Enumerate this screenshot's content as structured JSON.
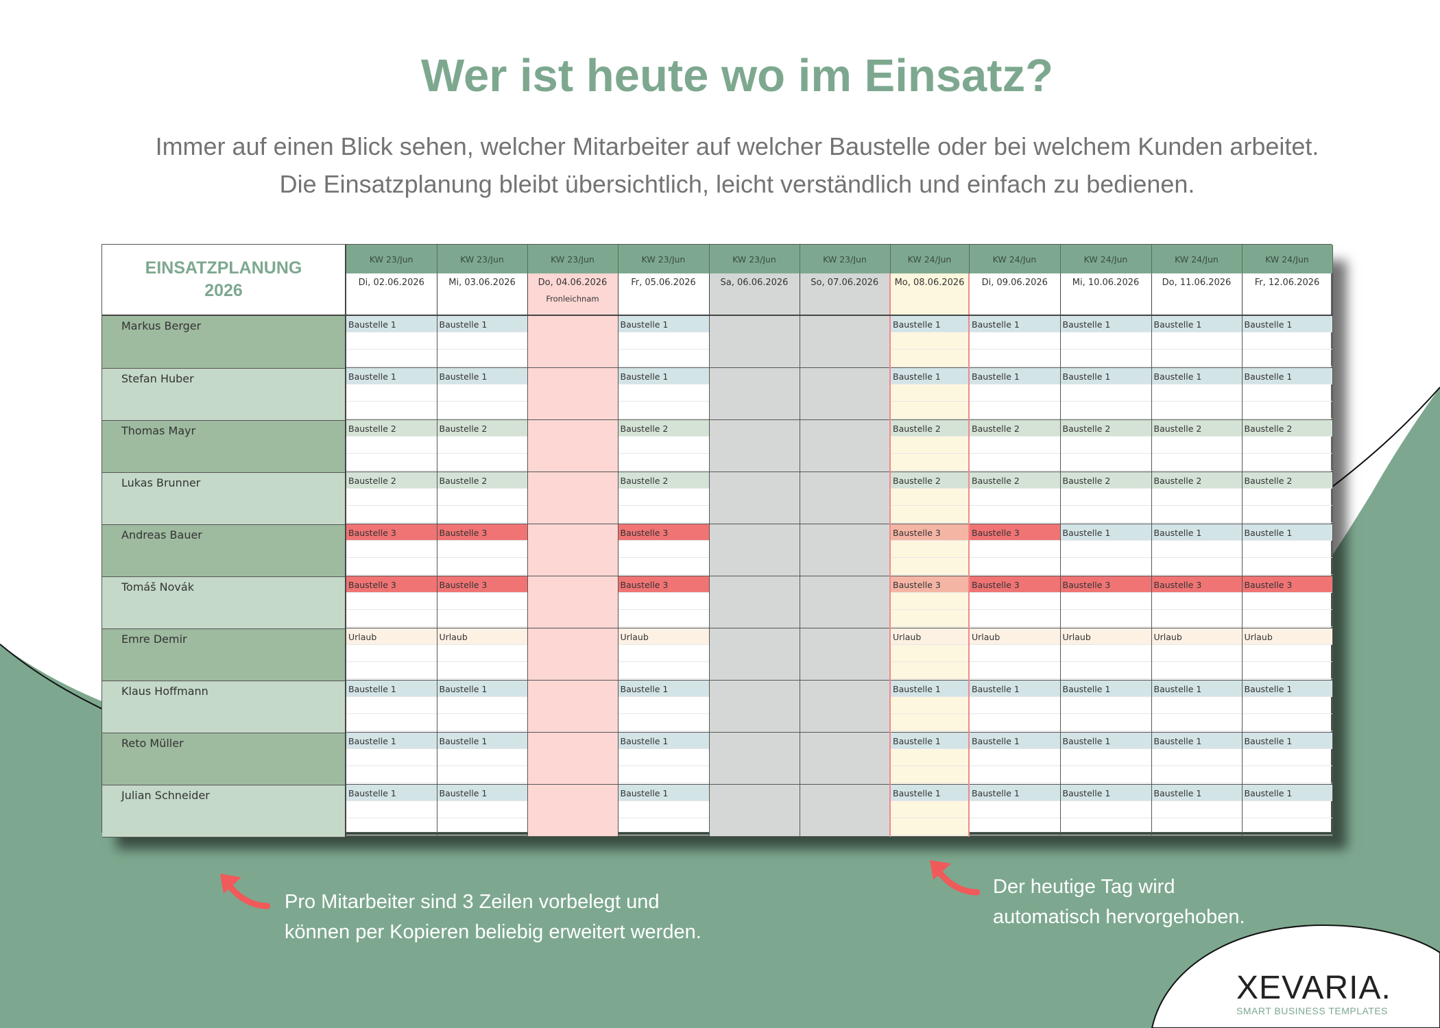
{
  "hero": {
    "title": "Wer ist heute wo im Einsatz?",
    "subtitle_line1": "Immer auf einen Blick sehen, welcher Mitarbeiter auf welcher Baustelle oder bei welchem Kunden arbeitet.",
    "subtitle_line2": "Die Einsatzplanung bleibt übersichtlich, leicht verständlich und einfach zu bedienen."
  },
  "sheet": {
    "title_line1": "EINSATZPLANUNG",
    "title_line2": "2026",
    "days": [
      {
        "kw": "KW 23/Jun",
        "date": "Di, 02.06.2026",
        "type": "work",
        "note": ""
      },
      {
        "kw": "KW 23/Jun",
        "date": "Mi, 03.06.2026",
        "type": "work",
        "note": ""
      },
      {
        "kw": "KW 23/Jun",
        "date": "Do, 04.06.2026",
        "type": "holiday",
        "note": "Fronleichnam"
      },
      {
        "kw": "KW 23/Jun",
        "date": "Fr, 05.06.2026",
        "type": "work",
        "note": ""
      },
      {
        "kw": "KW 23/Jun",
        "date": "Sa, 06.06.2026",
        "type": "weekend",
        "note": ""
      },
      {
        "kw": "KW 23/Jun",
        "date": "So, 07.06.2026",
        "type": "weekend",
        "note": ""
      },
      {
        "kw": "KW 24/Jun",
        "date": "Mo, 08.06.2026",
        "type": "today",
        "note": ""
      },
      {
        "kw": "KW 24/Jun",
        "date": "Di, 09.06.2026",
        "type": "work",
        "note": ""
      },
      {
        "kw": "KW 24/Jun",
        "date": "Mi, 10.06.2026",
        "type": "work",
        "note": ""
      },
      {
        "kw": "KW 24/Jun",
        "date": "Do, 11.06.2026",
        "type": "work",
        "note": ""
      },
      {
        "kw": "KW 24/Jun",
        "date": "Fr, 12.06.2026",
        "type": "work",
        "note": ""
      }
    ],
    "employees": [
      {
        "name": "Markus Berger",
        "assignments": [
          "Baustelle 1",
          "Baustelle 1",
          "",
          "Baustelle 1",
          "",
          "",
          "Baustelle 1",
          "Baustelle 1",
          "Baustelle 1",
          "Baustelle 1",
          "Baustelle 1"
        ]
      },
      {
        "name": "Stefan Huber",
        "assignments": [
          "Baustelle 1",
          "Baustelle 1",
          "",
          "Baustelle 1",
          "",
          "",
          "Baustelle 1",
          "Baustelle 1",
          "Baustelle 1",
          "Baustelle 1",
          "Baustelle 1"
        ]
      },
      {
        "name": "Thomas Mayr",
        "assignments": [
          "Baustelle 2",
          "Baustelle 2",
          "",
          "Baustelle 2",
          "",
          "",
          "Baustelle 2",
          "Baustelle 2",
          "Baustelle 2",
          "Baustelle 2",
          "Baustelle 2"
        ]
      },
      {
        "name": "Lukas Brunner",
        "assignments": [
          "Baustelle 2",
          "Baustelle 2",
          "",
          "Baustelle 2",
          "",
          "",
          "Baustelle 2",
          "Baustelle 2",
          "Baustelle 2",
          "Baustelle 2",
          "Baustelle 2"
        ]
      },
      {
        "name": "Andreas Bauer",
        "assignments": [
          "Baustelle 3",
          "Baustelle 3",
          "",
          "Baustelle 3",
          "",
          "",
          "Baustelle 3",
          "Baustelle 3",
          "Baustelle 1",
          "Baustelle 1",
          "Baustelle 1"
        ]
      },
      {
        "name": "Tomáš Novák",
        "assignments": [
          "Baustelle 3",
          "Baustelle 3",
          "",
          "Baustelle 3",
          "",
          "",
          "Baustelle 3",
          "Baustelle 3",
          "Baustelle 3",
          "Baustelle 3",
          "Baustelle 3"
        ]
      },
      {
        "name": "Emre Demir",
        "assignments": [
          "Urlaub",
          "Urlaub",
          "",
          "Urlaub",
          "",
          "",
          "Urlaub",
          "Urlaub",
          "Urlaub",
          "Urlaub",
          "Urlaub"
        ]
      },
      {
        "name": "Klaus Hoffmann",
        "assignments": [
          "Baustelle 1",
          "Baustelle 1",
          "",
          "Baustelle 1",
          "",
          "",
          "Baustelle 1",
          "Baustelle 1",
          "Baustelle 1",
          "Baustelle 1",
          "Baustelle 1"
        ]
      },
      {
        "name": "Reto Müller",
        "assignments": [
          "Baustelle 1",
          "Baustelle 1",
          "",
          "Baustelle 1",
          "",
          "",
          "Baustelle 1",
          "Baustelle 1",
          "Baustelle 1",
          "Baustelle 1",
          "Baustelle 1"
        ]
      },
      {
        "name": "Julian Schneider",
        "assignments": [
          "Baustelle 1",
          "Baustelle 1",
          "",
          "Baustelle 1",
          "",
          "",
          "Baustelle 1",
          "Baustelle 1",
          "Baustelle 1",
          "Baustelle 1",
          "Baustelle 1"
        ]
      }
    ]
  },
  "callouts": {
    "left_line1": "Pro Mitarbeiter sind 3 Zeilen vorbelegt und",
    "left_line2": "können per Kopieren beliebig erweitert werden.",
    "right_line1": "Der heutige Tag wird",
    "right_line2": "automatisch hervorgehoben."
  },
  "brand": {
    "logo": "XEVARIA.",
    "tagline": "SMART BUSINESS TEMPLATES"
  },
  "colors": {
    "accent_green": "#7da88f",
    "baustelle_1": "#d3e4e7",
    "baustelle_2": "#d4e3d6",
    "baustelle_3": "#f07474",
    "urlaub": "#fdf1e4",
    "holiday": "#fdd7d4",
    "weekend": "#d5d7d6",
    "today": "#fef7df"
  }
}
